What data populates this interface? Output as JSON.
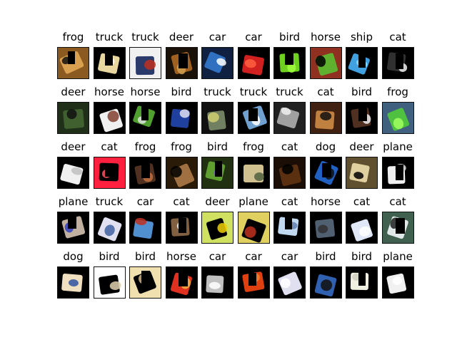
{
  "images": [
    {
      "label": "frog",
      "colors": [
        "#8a5a20",
        "#d9a050",
        "#101010"
      ]
    },
    {
      "label": "truck",
      "colors": [
        "#000000",
        "#e8d8a0",
        "#ffffff"
      ]
    },
    {
      "label": "truck",
      "colors": [
        "#f0f0f0",
        "#2a3a6a",
        "#c03020"
      ]
    },
    {
      "label": "deer",
      "colors": [
        "#1a1208",
        "#a06020",
        "#d0a050"
      ]
    },
    {
      "label": "car",
      "colors": [
        "#102040",
        "#3070c0",
        "#ffffff"
      ]
    },
    {
      "label": "car",
      "colors": [
        "#000000",
        "#d02020",
        "#ff6040"
      ]
    },
    {
      "label": "bird",
      "colors": [
        "#000000",
        "#70d020",
        "#a0ff40"
      ]
    },
    {
      "label": "horse",
      "colors": [
        "#903020",
        "#60b030",
        "#000000"
      ]
    },
    {
      "label": "ship",
      "colors": [
        "#000000",
        "#40a0e0",
        "#90e0ff"
      ]
    },
    {
      "label": "cat",
      "colors": [
        "#000000",
        "#303030",
        "#f0f0f0"
      ]
    },
    {
      "label": "deer",
      "colors": [
        "#203018",
        "#406030",
        "#101010"
      ]
    },
    {
      "label": "horse",
      "colors": [
        "#000000",
        "#f0f0f0",
        "#804030"
      ]
    },
    {
      "label": "horse",
      "colors": [
        "#000000",
        "#50a030",
        "#e0e0e0"
      ]
    },
    {
      "label": "bird",
      "colors": [
        "#000000",
        "#2040a0",
        "#e0e0f0"
      ]
    },
    {
      "label": "truck",
      "colors": [
        "#101010",
        "#708060",
        "#d0d070"
      ]
    },
    {
      "label": "truck",
      "colors": [
        "#000000",
        "#70a0d0",
        "#ffffff"
      ]
    },
    {
      "label": "truck",
      "colors": [
        "#202020",
        "#a0a0a0",
        "#f0f0f0"
      ]
    },
    {
      "label": "cat",
      "colors": [
        "#402010",
        "#c08040",
        "#101010"
      ]
    },
    {
      "label": "bird",
      "colors": [
        "#000000",
        "#503020",
        "#f0f0f0"
      ]
    },
    {
      "label": "frog",
      "colors": [
        "#406080",
        "#50c040",
        "#a0ff60"
      ]
    },
    {
      "label": "deer",
      "colors": [
        "#000000",
        "#f0f0f0",
        "#c0c0c0"
      ]
    },
    {
      "label": "cat",
      "colors": [
        "#ff2040",
        "#000000",
        "#ff5060"
      ]
    },
    {
      "label": "frog",
      "colors": [
        "#000000",
        "#503020",
        "#c07040"
      ]
    },
    {
      "label": "frog",
      "colors": [
        "#2a1a08",
        "#a07040",
        "#000000"
      ]
    },
    {
      "label": "bird",
      "colors": [
        "#203010",
        "#60a030",
        "#8060c0"
      ]
    },
    {
      "label": "frog",
      "colors": [
        "#000000",
        "#d0c090",
        "#506040"
      ]
    },
    {
      "label": "cat",
      "colors": [
        "#1a0e06",
        "#5a3010",
        "#000000"
      ]
    },
    {
      "label": "dog",
      "colors": [
        "#000000",
        "#2060c0",
        "#101010"
      ]
    },
    {
      "label": "deer",
      "colors": [
        "#605030",
        "#e0d0a0",
        "#000000"
      ]
    },
    {
      "label": "plane",
      "colors": [
        "#000000",
        "#f0f0f0",
        "#d0d0d0"
      ]
    },
    {
      "label": "plane",
      "colors": [
        "#000000",
        "#c0b0a0",
        "#3040c0"
      ]
    },
    {
      "label": "truck",
      "colors": [
        "#000000",
        "#e0e0f0",
        "#4060a0"
      ]
    },
    {
      "label": "car",
      "colors": [
        "#000000",
        "#5090d0",
        "#c03020"
      ]
    },
    {
      "label": "cat",
      "colors": [
        "#000000",
        "#806040",
        "#f0f0f0"
      ]
    },
    {
      "label": "deer",
      "colors": [
        "#d0e060",
        "#000000",
        "#f0d000"
      ]
    },
    {
      "label": "plane",
      "colors": [
        "#e0d060",
        "#000000",
        "#c03020"
      ]
    },
    {
      "label": "cat",
      "colors": [
        "#000000",
        "#c0d8f0",
        "#6080b0"
      ]
    },
    {
      "label": "horse",
      "colors": [
        "#000000",
        "#506070",
        "#303030"
      ]
    },
    {
      "label": "cat",
      "colors": [
        "#000000",
        "#e0e8f8",
        "#ffffff"
      ]
    },
    {
      "label": "cat",
      "colors": [
        "#406050",
        "#e0e8e8",
        "#202020"
      ]
    },
    {
      "label": "dog",
      "colors": [
        "#000000",
        "#f0e0c0",
        "#3050a0"
      ]
    },
    {
      "label": "bird",
      "colors": [
        "#ffffff",
        "#000000",
        "#e0d0b0"
      ]
    },
    {
      "label": "bird",
      "colors": [
        "#f0e0b0",
        "#000000",
        "#d0b080"
      ]
    },
    {
      "label": "horse",
      "colors": [
        "#000000",
        "#e03020",
        "#f0b040"
      ]
    },
    {
      "label": "car",
      "colors": [
        "#000000",
        "#c0c0c0",
        "#ffffff"
      ]
    },
    {
      "label": "car",
      "colors": [
        "#000000",
        "#e04010",
        "#f08030"
      ]
    },
    {
      "label": "car",
      "colors": [
        "#000000",
        "#e0e0f0",
        "#ffffff"
      ]
    },
    {
      "label": "bird",
      "colors": [
        "#000000",
        "#3060b0",
        "#101010"
      ]
    },
    {
      "label": "bird",
      "colors": [
        "#000000",
        "#f0f0e0",
        "#d0d0c0"
      ]
    },
    {
      "label": "plane",
      "colors": [
        "#000000",
        "#f0f0f0",
        "#ffffff"
      ]
    }
  ]
}
